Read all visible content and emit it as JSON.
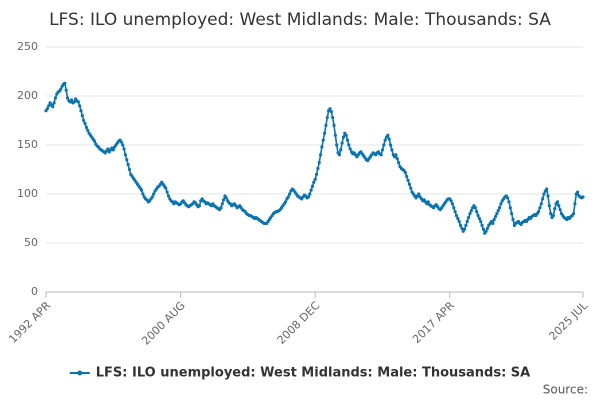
{
  "chart_data": {
    "type": "line",
    "title": "LFS: ILO unemployed: West Midlands: Male: Thousands: SA",
    "source": "Source:",
    "categories": [
      "1992 APR",
      null,
      null,
      null,
      null,
      null,
      null,
      null,
      null,
      null,
      null,
      null,
      null,
      null,
      null,
      null,
      null,
      null,
      null,
      null,
      null,
      null,
      null,
      null,
      null,
      null,
      null,
      null,
      null,
      null,
      null,
      null,
      null,
      null,
      null,
      null,
      null,
      null,
      null,
      null,
      null,
      null,
      null,
      null,
      null,
      null,
      null,
      null,
      null,
      null,
      null,
      null,
      null,
      null,
      null,
      null,
      null,
      null,
      null,
      null,
      null,
      null,
      null,
      null,
      null,
      null,
      null,
      null,
      null,
      null,
      null,
      null,
      null,
      null,
      null,
      null,
      null,
      null,
      null,
      null,
      null,
      null,
      null,
      null,
      null,
      null,
      null,
      null,
      null,
      null,
      null,
      null,
      null,
      null,
      null,
      null,
      null,
      null,
      null,
      null,
      "2000 AUG",
      null,
      null,
      null,
      null,
      null,
      null,
      null,
      null,
      null,
      null,
      null,
      null,
      null,
      null,
      null,
      null,
      null,
      null,
      null,
      null,
      null,
      null,
      null,
      null,
      null,
      null,
      null,
      null,
      null,
      null,
      null,
      null,
      null,
      null,
      null,
      null,
      null,
      null,
      null,
      null,
      null,
      null,
      null,
      null,
      null,
      null,
      null,
      null,
      null,
      null,
      null,
      null,
      null,
      null,
      null,
      null,
      null,
      null,
      null,
      null,
      null,
      null,
      null,
      null,
      null,
      null,
      null,
      null,
      null,
      null,
      null,
      null,
      null,
      null,
      null,
      null,
      null,
      null,
      null,
      null,
      null,
      null,
      null,
      null,
      null,
      null,
      null,
      null,
      null,
      null,
      null,
      null,
      null,
      null,
      null,
      null,
      null,
      null,
      null,
      "2008 DEC",
      null,
      null,
      null,
      null,
      null,
      null,
      null,
      null,
      null,
      null,
      null,
      null,
      null,
      null,
      null,
      null,
      null,
      null,
      null,
      null,
      null,
      null,
      null,
      null,
      null,
      null,
      null,
      null,
      null,
      null,
      null,
      null,
      null,
      null,
      null,
      null,
      null,
      null,
      null,
      null,
      null,
      null,
      null,
      null,
      null,
      null,
      null,
      null,
      null,
      null,
      null,
      null,
      null,
      null,
      null,
      null,
      null,
      null,
      null,
      null,
      null,
      null,
      null,
      null,
      null,
      null,
      null,
      null,
      null,
      null,
      null,
      null,
      null,
      null,
      null,
      null,
      null,
      null,
      null,
      null,
      null,
      null,
      null,
      null,
      null,
      null,
      null,
      null,
      null,
      null,
      null,
      null,
      null,
      null,
      null,
      null,
      null,
      null,
      null,
      "2017 APR",
      null,
      null,
      null,
      null,
      null,
      null,
      null,
      null,
      null,
      null,
      null,
      null,
      null,
      null,
      null,
      null,
      null,
      null,
      null,
      null,
      null,
      null,
      null,
      null,
      null,
      null,
      null,
      null,
      null,
      null,
      null,
      null,
      null,
      null,
      null,
      null,
      null,
      null,
      null,
      null,
      null,
      null,
      null,
      null,
      null,
      null,
      null,
      null,
      null,
      null,
      null,
      null,
      null,
      null,
      null,
      null,
      null,
      null,
      null,
      null,
      null,
      null,
      null,
      null,
      null,
      null,
      null,
      null,
      null,
      null,
      null,
      null,
      null,
      null,
      null,
      null,
      null,
      null,
      null,
      null,
      null,
      null,
      null,
      null,
      null,
      null,
      null,
      null,
      null,
      null,
      null,
      null,
      null,
      null,
      null,
      null,
      null,
      null,
      "2025 JUL"
    ],
    "series": [
      {
        "name": "LFS: ILO unemployed: West Midlands: Male: Thousands: SA",
        "color": "#0a73b0",
        "values": [
          185,
          187,
          190,
          193,
          191,
          189,
          193,
          198,
          202,
          204,
          205,
          207,
          210,
          212,
          213,
          206,
          198,
          195,
          194,
          196,
          193,
          194,
          197,
          195,
          194,
          190,
          185,
          180,
          175,
          172,
          168,
          165,
          162,
          160,
          158,
          156,
          154,
          151,
          149,
          148,
          146,
          145,
          144,
          143,
          142,
          144,
          146,
          143,
          145,
          147,
          145,
          148,
          150,
          152,
          154,
          155,
          153,
          150,
          146,
          140,
          135,
          130,
          125,
          120,
          118,
          116,
          114,
          112,
          110,
          108,
          106,
          104,
          100,
          97,
          95,
          94,
          92,
          93,
          95,
          97,
          100,
          103,
          105,
          107,
          108,
          110,
          112,
          110,
          108,
          106,
          102,
          98,
          95,
          93,
          92,
          90,
          92,
          91,
          90,
          89,
          90,
          92,
          93,
          91,
          89,
          88,
          87,
          88,
          89,
          90,
          92,
          91,
          89,
          87,
          88,
          93,
          95,
          93,
          92,
          90,
          91,
          90,
          89,
          88,
          90,
          88,
          87,
          86,
          85,
          84,
          86,
          90,
          94,
          98,
          96,
          93,
          91,
          90,
          88,
          89,
          90,
          88,
          86,
          87,
          88,
          86,
          84,
          83,
          82,
          80,
          79,
          78,
          78,
          77,
          76,
          75,
          76,
          75,
          74,
          73,
          72,
          71,
          70,
          70,
          70,
          72,
          74,
          76,
          78,
          80,
          81,
          82,
          82,
          83,
          84,
          86,
          88,
          90,
          92,
          95,
          97,
          100,
          103,
          105,
          104,
          102,
          100,
          98,
          97,
          96,
          95,
          97,
          99,
          98,
          96,
          97,
          100,
          104,
          108,
          112,
          115,
          120,
          126,
          132,
          140,
          148,
          155,
          162,
          170,
          178,
          185,
          187,
          184,
          178,
          170,
          160,
          150,
          142,
          140,
          145,
          152,
          158,
          162,
          160,
          155,
          150,
          146,
          143,
          141,
          142,
          140,
          138,
          140,
          142,
          143,
          141,
          139,
          137,
          135,
          134,
          136,
          138,
          140,
          142,
          141,
          140,
          142,
          143,
          141,
          140,
          145,
          150,
          155,
          158,
          160,
          156,
          150,
          145,
          140,
          138,
          140,
          136,
          132,
          128,
          126,
          125,
          124,
          122,
          118,
          114,
          110,
          106,
          102,
          100,
          98,
          96,
          98,
          100,
          97,
          95,
          93,
          94,
          92,
          90,
          92,
          89,
          88,
          87,
          86,
          88,
          89,
          87,
          85,
          84,
          86,
          88,
          90,
          92,
          94,
          95,
          95,
          93,
          90,
          86,
          82,
          78,
          75,
          72,
          68,
          65,
          62,
          64,
          68,
          72,
          76,
          80,
          83,
          86,
          88,
          86,
          82,
          78,
          75,
          72,
          68,
          64,
          60,
          62,
          65,
          68,
          70,
          72,
          70,
          74,
          77,
          80,
          83,
          86,
          90,
          93,
          95,
          97,
          98,
          96,
          92,
          86,
          80,
          74,
          68,
          70,
          71,
          72,
          70,
          69,
          71,
          72,
          73,
          72,
          74,
          76,
          75,
          77,
          78,
          79,
          78,
          80,
          82,
          86,
          90,
          95,
          100,
          103,
          105,
          98,
          88,
          80,
          76,
          78,
          85,
          90,
          92,
          88,
          84,
          80,
          78,
          76,
          75,
          74,
          76,
          75,
          77,
          78,
          80,
          90,
          100,
          102,
          98,
          97,
          96,
          97
        ]
      }
    ],
    "ylim": [
      0,
      250
    ],
    "yticks": [
      0,
      50,
      100,
      150,
      200,
      250
    ],
    "grid": true
  }
}
